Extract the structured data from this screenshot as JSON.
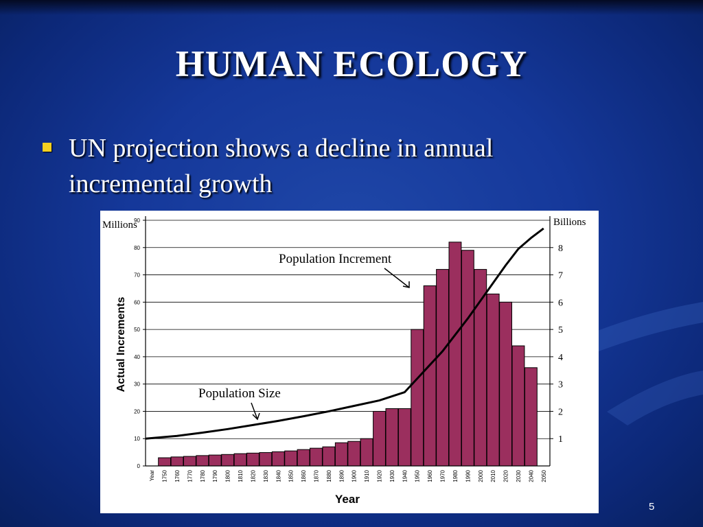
{
  "slide": {
    "title": "HUMAN ECOLOGY",
    "bullet": "UN projection shows a decline in annual incremental growth",
    "page_number": "5"
  },
  "colors": {
    "background": "#15389a",
    "bullet": "#f5d020",
    "bar_fill": "#9b2f5e",
    "line": "#000000"
  },
  "chart_data": {
    "type": "bar",
    "xlabel": "Year",
    "ylabel": "Actual Increments",
    "ylabel_unit": "Millions",
    "y2label_unit": "Billions",
    "x_axis_first_label": "Year",
    "ylim": [
      0,
      90
    ],
    "yticks": [
      0,
      10,
      20,
      30,
      40,
      50,
      60,
      70,
      80,
      90
    ],
    "y2lim": [
      0,
      9
    ],
    "y2ticks": [
      1,
      2,
      3,
      4,
      5,
      6,
      7,
      8
    ],
    "categories": [
      "1750",
      "1760",
      "1770",
      "1780",
      "1790",
      "1800",
      "1810",
      "1820",
      "1830",
      "1840",
      "1850",
      "1860",
      "1870",
      "1880",
      "1890",
      "1900",
      "1910",
      "1920",
      "1930",
      "1940",
      "1950",
      "1960",
      "1970",
      "1980",
      "1990",
      "2000",
      "2010",
      "2020",
      "2030",
      "2040",
      "2050"
    ],
    "series": [
      {
        "name": "Population Increment",
        "type": "bar",
        "axis": "left",
        "values": [
          3,
          3.3,
          3.5,
          3.8,
          4,
          4.2,
          4.5,
          4.7,
          4.9,
          5.2,
          5.5,
          6,
          6.5,
          7,
          8.5,
          9,
          10,
          20,
          21,
          21,
          50,
          66,
          72,
          82,
          79,
          72,
          63,
          60,
          44,
          36,
          null
        ]
      },
      {
        "name": "Population Size",
        "type": "line",
        "axis": "right",
        "x": [
          "Year",
          "1760",
          "1780",
          "1800",
          "1820",
          "1840",
          "1860",
          "1880",
          "1900",
          "1920",
          "1940",
          "1950",
          "1960",
          "1970",
          "1980",
          "1990",
          "2000",
          "2010",
          "2020",
          "2030",
          "2040",
          "2050"
        ],
        "values": [
          1.0,
          1.1,
          1.22,
          1.35,
          1.5,
          1.65,
          1.82,
          2.0,
          2.2,
          2.4,
          2.7,
          3.2,
          3.7,
          4.2,
          4.8,
          5.4,
          6.05,
          6.7,
          7.35,
          7.95,
          8.35,
          8.7
        ]
      }
    ],
    "annotations": [
      "Population Increment",
      "Population Size"
    ],
    "grid": "horizontal"
  }
}
